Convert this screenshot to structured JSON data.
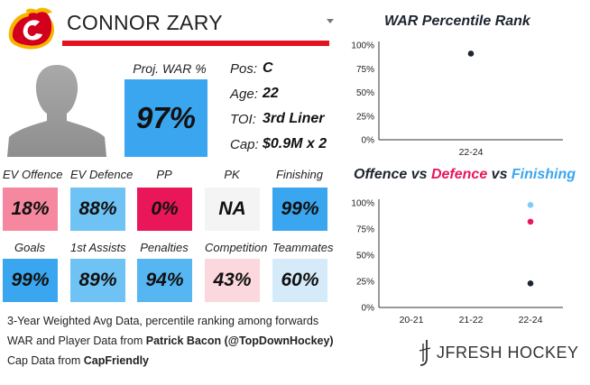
{
  "player": {
    "name": "CONNOR ZARY"
  },
  "team_logo": "calgary-flames-logo",
  "projection": {
    "label": "Proj. WAR %",
    "value": "97%"
  },
  "info": {
    "pos_label": "Pos:",
    "pos_value": "C",
    "age_label": "Age:",
    "age_value": "22",
    "toi_label": "TOI:",
    "toi_value": "3rd Liner",
    "cap_label": "Cap:",
    "cap_value": "$0.9M x 2"
  },
  "tiles": [
    {
      "label": "EV Offence",
      "value": "18%",
      "color": "#f5889e"
    },
    {
      "label": "EV Defence",
      "value": "88%",
      "color": "#6fc2f4"
    },
    {
      "label": "PP",
      "value": "0%",
      "color": "#e9175a"
    },
    {
      "label": "PK",
      "value": "NA",
      "color": "#f4f4f4"
    },
    {
      "label": "Finishing",
      "value": "99%",
      "color": "#3aa6ef"
    },
    {
      "label": "Goals",
      "value": "99%",
      "color": "#3aa6ef"
    },
    {
      "label": "1st Assists",
      "value": "89%",
      "color": "#6fc2f4"
    },
    {
      "label": "Penalties",
      "value": "94%",
      "color": "#55b6f2"
    },
    {
      "label": "Competition",
      "value": "43%",
      "color": "#fbd7de"
    },
    {
      "label": "Teammates",
      "value": "60%",
      "color": "#d6ebfa"
    }
  ],
  "footer": {
    "line1": "3-Year Weighted Avg Data, percentile ranking among forwards",
    "line2_prefix": "WAR and Player Data from ",
    "line2_bold": "Patrick Bacon (@TopDownHockey)",
    "line3_prefix": "Cap Data from ",
    "line3_bold": "CapFriendly"
  },
  "brand": {
    "name": "JFRESH HOCKEY"
  },
  "chart_war": {
    "title": "WAR Percentile Rank"
  },
  "chart_ovd": {
    "title_offence": "Offence",
    "title_vs1": " vs ",
    "title_defence": "Defence",
    "title_vs2": " vs ",
    "title_finishing": "Finishing"
  },
  "chart_data": [
    {
      "type": "scatter",
      "title": "WAR Percentile Rank",
      "categories": [
        "22-24"
      ],
      "ylim": [
        0,
        100
      ],
      "yticks": [
        "0%",
        "25%",
        "50%",
        "75%",
        "100%"
      ],
      "series": [
        {
          "values": [
            91
          ],
          "color": "#1d2530"
        }
      ],
      "grid": false
    },
    {
      "type": "scatter",
      "title": "Offence vs Defence vs Finishing",
      "categories": [
        "20-21",
        "21-22",
        "22-24"
      ],
      "ylim": [
        0,
        100
      ],
      "yticks": [
        "0%",
        "25%",
        "50%",
        "75%",
        "100%"
      ],
      "series": [
        {
          "name": "Offence",
          "values": [
            null,
            null,
            23
          ],
          "color": "#1d2530"
        },
        {
          "name": "Defence",
          "values": [
            null,
            null,
            82
          ],
          "color": "#e9175a"
        },
        {
          "name": "Finishing",
          "values": [
            null,
            null,
            98
          ],
          "color": "#7fcbf7"
        }
      ],
      "grid": false
    }
  ]
}
